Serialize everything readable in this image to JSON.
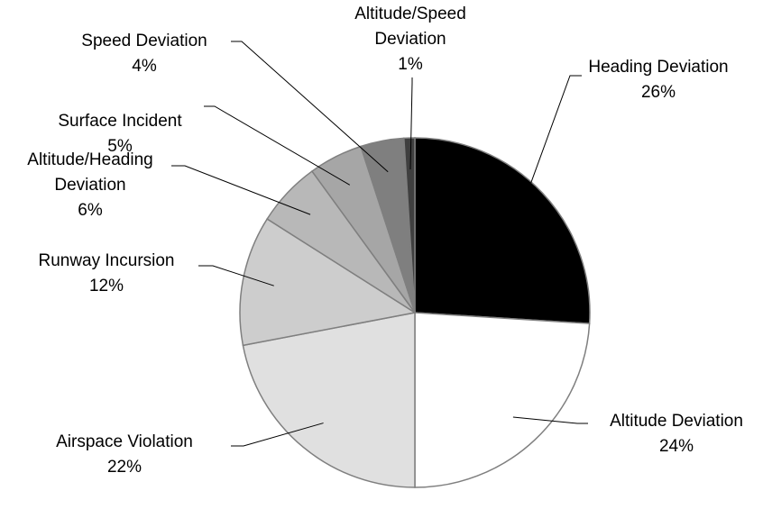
{
  "chart_data": {
    "type": "pie",
    "categories": [
      "Heading Deviation",
      "Altitude Deviation",
      "Airspace Violation",
      "Runway Incursion",
      "Altitude/Heading Deviation",
      "Surface Incident",
      "Speed Deviation",
      "Altitude/Speed Deviation"
    ],
    "values": [
      26,
      24,
      22,
      12,
      6,
      5,
      4,
      1
    ],
    "value_labels": [
      "26%",
      "24%",
      "22%",
      "12%",
      "6%",
      "5%",
      "4%",
      "1%"
    ],
    "colors": [
      "#000000",
      "#ffffff",
      "#e0e0e0",
      "#cdcdcd",
      "#b8b8b8",
      "#a6a6a6",
      "#7f7f7f",
      "#3f3f3f"
    ]
  }
}
